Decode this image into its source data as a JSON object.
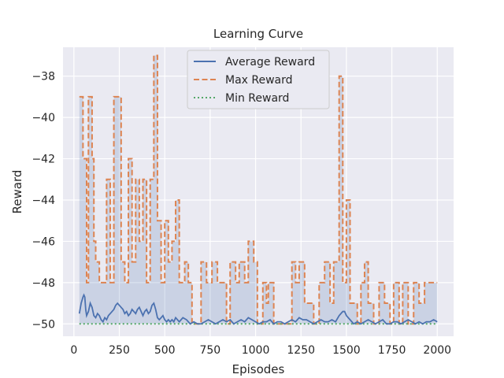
{
  "chart_data": {
    "type": "line",
    "title": "Learning Curve",
    "xlabel": "Episodes",
    "ylabel": "Reward",
    "xlim": [
      -60,
      2090
    ],
    "ylim": [
      -50.6,
      -36.6
    ],
    "xticks": [
      0,
      250,
      500,
      750,
      1000,
      1250,
      1500,
      1750,
      2000
    ],
    "xtick_labels": [
      "0",
      "250",
      "500",
      "750",
      "1000",
      "1250",
      "1500",
      "1750",
      "2000"
    ],
    "yticks": [
      -38,
      -40,
      -42,
      -44,
      -46,
      -48,
      -50
    ],
    "ytick_labels": [
      "−38",
      "−40",
      "−42",
      "−44",
      "−46",
      "−48",
      "−50"
    ],
    "legend_position": "upper-center",
    "series": [
      {
        "name": "Average Reward",
        "color": "#4c72b0",
        "style": "solid",
        "points": [
          [
            30,
            -49.5
          ],
          [
            40,
            -49.0
          ],
          [
            50,
            -48.7
          ],
          [
            55,
            -48.6
          ],
          [
            60,
            -48.7
          ],
          [
            65,
            -49.3
          ],
          [
            70,
            -49.6
          ],
          [
            80,
            -49.4
          ],
          [
            90,
            -49.0
          ],
          [
            100,
            -49.2
          ],
          [
            110,
            -49.6
          ],
          [
            120,
            -49.7
          ],
          [
            130,
            -49.5
          ],
          [
            140,
            -49.6
          ],
          [
            150,
            -49.8
          ],
          [
            160,
            -49.9
          ],
          [
            170,
            -49.7
          ],
          [
            180,
            -49.8
          ],
          [
            190,
            -49.6
          ],
          [
            200,
            -49.5
          ],
          [
            210,
            -49.4
          ],
          [
            220,
            -49.3
          ],
          [
            230,
            -49.1
          ],
          [
            240,
            -49.0
          ],
          [
            250,
            -49.1
          ],
          [
            260,
            -49.2
          ],
          [
            270,
            -49.3
          ],
          [
            280,
            -49.5
          ],
          [
            290,
            -49.4
          ],
          [
            300,
            -49.6
          ],
          [
            310,
            -49.5
          ],
          [
            320,
            -49.3
          ],
          [
            330,
            -49.4
          ],
          [
            340,
            -49.5
          ],
          [
            350,
            -49.3
          ],
          [
            360,
            -49.2
          ],
          [
            370,
            -49.4
          ],
          [
            380,
            -49.6
          ],
          [
            390,
            -49.4
          ],
          [
            400,
            -49.3
          ],
          [
            410,
            -49.5
          ],
          [
            420,
            -49.4
          ],
          [
            430,
            -49.1
          ],
          [
            440,
            -49.0
          ],
          [
            450,
            -49.3
          ],
          [
            460,
            -49.7
          ],
          [
            470,
            -49.8
          ],
          [
            480,
            -49.7
          ],
          [
            490,
            -49.6
          ],
          [
            500,
            -49.8
          ],
          [
            510,
            -49.9
          ],
          [
            520,
            -49.8
          ],
          [
            530,
            -49.9
          ],
          [
            540,
            -49.8
          ],
          [
            550,
            -49.9
          ],
          [
            560,
            -49.7
          ],
          [
            570,
            -49.8
          ],
          [
            580,
            -49.9
          ],
          [
            600,
            -49.7
          ],
          [
            620,
            -49.8
          ],
          [
            640,
            -50.0
          ],
          [
            660,
            -49.9
          ],
          [
            680,
            -50.0
          ],
          [
            700,
            -50.0
          ],
          [
            720,
            -49.9
          ],
          [
            740,
            -49.8
          ],
          [
            760,
            -49.9
          ],
          [
            780,
            -50.0
          ],
          [
            800,
            -49.9
          ],
          [
            820,
            -49.8
          ],
          [
            840,
            -49.9
          ],
          [
            860,
            -49.8
          ],
          [
            880,
            -50.0
          ],
          [
            900,
            -49.9
          ],
          [
            920,
            -49.8
          ],
          [
            940,
            -49.9
          ],
          [
            960,
            -49.7
          ],
          [
            980,
            -49.8
          ],
          [
            1000,
            -49.9
          ],
          [
            1020,
            -50.0
          ],
          [
            1040,
            -49.9
          ],
          [
            1060,
            -49.9
          ],
          [
            1080,
            -49.8
          ],
          [
            1100,
            -50.0
          ],
          [
            1120,
            -49.9
          ],
          [
            1140,
            -49.9
          ],
          [
            1160,
            -50.0
          ],
          [
            1180,
            -49.9
          ],
          [
            1200,
            -49.8
          ],
          [
            1220,
            -49.9
          ],
          [
            1240,
            -49.7
          ],
          [
            1260,
            -49.8
          ],
          [
            1280,
            -49.8
          ],
          [
            1300,
            -49.9
          ],
          [
            1320,
            -50.0
          ],
          [
            1340,
            -49.9
          ],
          [
            1360,
            -49.8
          ],
          [
            1380,
            -49.9
          ],
          [
            1400,
            -49.9
          ],
          [
            1420,
            -49.8
          ],
          [
            1440,
            -49.9
          ],
          [
            1460,
            -49.6
          ],
          [
            1480,
            -49.4
          ],
          [
            1490,
            -49.4
          ],
          [
            1500,
            -49.6
          ],
          [
            1520,
            -49.8
          ],
          [
            1540,
            -50.0
          ],
          [
            1560,
            -49.9
          ],
          [
            1580,
            -50.0
          ],
          [
            1600,
            -49.9
          ],
          [
            1620,
            -49.8
          ],
          [
            1640,
            -49.9
          ],
          [
            1660,
            -50.0
          ],
          [
            1680,
            -49.9
          ],
          [
            1700,
            -49.8
          ],
          [
            1720,
            -50.0
          ],
          [
            1740,
            -50.0
          ],
          [
            1760,
            -49.9
          ],
          [
            1780,
            -49.9
          ],
          [
            1800,
            -50.0
          ],
          [
            1820,
            -49.9
          ],
          [
            1840,
            -49.8
          ],
          [
            1860,
            -49.9
          ],
          [
            1880,
            -50.0
          ],
          [
            1900,
            -49.9
          ],
          [
            1920,
            -50.0
          ],
          [
            1940,
            -49.9
          ],
          [
            1960,
            -49.9
          ],
          [
            1980,
            -49.8
          ],
          [
            2000,
            -49.9
          ]
        ]
      },
      {
        "name": "Max Reward",
        "color": "#dd8452",
        "style": "dashed",
        "points": [
          [
            30,
            -39
          ],
          [
            50,
            -42
          ],
          [
            70,
            -48
          ],
          [
            80,
            -39
          ],
          [
            100,
            -42
          ],
          [
            110,
            -46
          ],
          [
            120,
            -47
          ],
          [
            140,
            -48
          ],
          [
            180,
            -43
          ],
          [
            200,
            -48
          ],
          [
            220,
            -39
          ],
          [
            260,
            -47
          ],
          [
            280,
            -48
          ],
          [
            300,
            -42
          ],
          [
            320,
            -47
          ],
          [
            340,
            -43
          ],
          [
            360,
            -46
          ],
          [
            380,
            -43
          ],
          [
            400,
            -48
          ],
          [
            420,
            -43
          ],
          [
            440,
            -37
          ],
          [
            460,
            -45
          ],
          [
            480,
            -48
          ],
          [
            500,
            -45
          ],
          [
            520,
            -47
          ],
          [
            540,
            -46
          ],
          [
            560,
            -44
          ],
          [
            580,
            -48
          ],
          [
            610,
            -47
          ],
          [
            630,
            -48
          ],
          [
            650,
            -50
          ],
          [
            700,
            -47
          ],
          [
            730,
            -48
          ],
          [
            760,
            -47
          ],
          [
            790,
            -48
          ],
          [
            840,
            -50
          ],
          [
            860,
            -47
          ],
          [
            890,
            -48
          ],
          [
            910,
            -47
          ],
          [
            940,
            -48
          ],
          [
            960,
            -46
          ],
          [
            990,
            -47
          ],
          [
            1010,
            -50
          ],
          [
            1040,
            -48
          ],
          [
            1060,
            -49
          ],
          [
            1070,
            -48
          ],
          [
            1100,
            -50
          ],
          [
            1150,
            -50
          ],
          [
            1180,
            -50
          ],
          [
            1200,
            -47
          ],
          [
            1220,
            -48
          ],
          [
            1240,
            -47
          ],
          [
            1270,
            -49
          ],
          [
            1300,
            -49
          ],
          [
            1320,
            -50
          ],
          [
            1350,
            -48
          ],
          [
            1380,
            -47
          ],
          [
            1410,
            -49
          ],
          [
            1430,
            -47
          ],
          [
            1460,
            -38
          ],
          [
            1480,
            -48
          ],
          [
            1500,
            -44
          ],
          [
            1520,
            -49
          ],
          [
            1560,
            -50
          ],
          [
            1580,
            -48
          ],
          [
            1600,
            -47
          ],
          [
            1620,
            -49
          ],
          [
            1650,
            -50
          ],
          [
            1680,
            -48
          ],
          [
            1710,
            -49
          ],
          [
            1740,
            -50
          ],
          [
            1760,
            -48
          ],
          [
            1790,
            -50
          ],
          [
            1810,
            -48
          ],
          [
            1840,
            -50
          ],
          [
            1870,
            -48
          ],
          [
            1900,
            -49
          ],
          [
            1930,
            -48
          ],
          [
            1960,
            -48
          ],
          [
            2000,
            -48
          ]
        ]
      },
      {
        "name": "Min Reward",
        "color": "#55a868",
        "style": "dotted",
        "points": [
          [
            30,
            -50
          ],
          [
            2000,
            -50
          ]
        ]
      }
    ]
  }
}
